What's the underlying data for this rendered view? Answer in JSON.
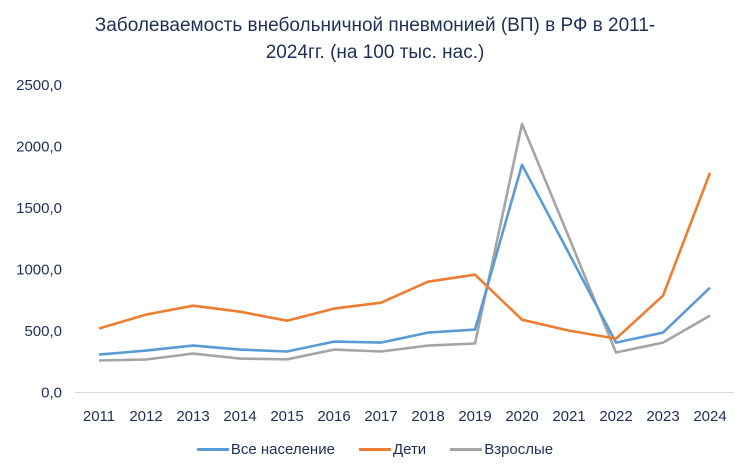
{
  "title_line1": "Заболеваемость внебольничной пневмонией (ВП) в РФ в 2011-",
  "title_line2": "2024гг. (на 100 тыс. нас.)",
  "legend": [
    {
      "label": "Все население",
      "color": "#5b9bd5"
    },
    {
      "label": "Дети",
      "color": "#ed7d31"
    },
    {
      "label": "Взрослые",
      "color": "#a5a5a5"
    }
  ],
  "chart_data": {
    "type": "line",
    "title": "Заболеваемость внебольничной пневмонией (ВП) в РФ в 2011-2024гг. (на 100 тыс. нас.)",
    "xlabel": "",
    "ylabel": "",
    "categories": [
      "2011",
      "2012",
      "2013",
      "2014",
      "2015",
      "2016",
      "2017",
      "2018",
      "2019",
      "2020",
      "2021",
      "2022",
      "2023",
      "2024"
    ],
    "series": [
      {
        "name": "Все население",
        "color": "#5b9bd5",
        "values": [
          308,
          341,
          381,
          349,
          333,
          414,
          406,
          487,
          511,
          1851,
          1130,
          406,
          487,
          852
        ]
      },
      {
        "name": "Дети",
        "color": "#ed7d31",
        "values": [
          520,
          633,
          706,
          657,
          584,
          682,
          730,
          901,
          958,
          592,
          503,
          438,
          787,
          1786
        ]
      },
      {
        "name": "Взрослые",
        "color": "#a5a5a5",
        "values": [
          260,
          268,
          316,
          276,
          270,
          349,
          333,
          381,
          398,
          2183,
          1260,
          325,
          406,
          625
        ]
      }
    ],
    "yticks": [
      "0,0",
      "500,0",
      "1000,0",
      "1500,0",
      "2000,0",
      "2500,0"
    ],
    "ylim": [
      0,
      2500
    ],
    "grid": false,
    "legend_position": "bottom"
  }
}
